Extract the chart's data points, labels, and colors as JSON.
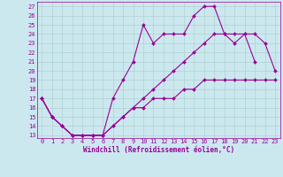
{
  "xlabel": "Windchill (Refroidissement éolien,°C)",
  "x_hours": [
    0,
    1,
    2,
    3,
    4,
    5,
    6,
    7,
    8,
    9,
    10,
    11,
    12,
    13,
    14,
    15,
    16,
    17,
    18,
    19,
    20,
    21,
    22,
    23
  ],
  "line_jagged": [
    17,
    15,
    14,
    13,
    13,
    13,
    13,
    17,
    19,
    21,
    25,
    23,
    24,
    24,
    24,
    26,
    27,
    27,
    24,
    23,
    24,
    21,
    null,
    null
  ],
  "line_upper": [
    17,
    15,
    14,
    13,
    13,
    13,
    13,
    14,
    15,
    16,
    17,
    18,
    19,
    20,
    21,
    22,
    23,
    24,
    24,
    24,
    24,
    24,
    23,
    20
  ],
  "line_lower": [
    17,
    15,
    14,
    13,
    13,
    13,
    13,
    14,
    15,
    16,
    16,
    17,
    17,
    17,
    18,
    18,
    19,
    19,
    19,
    19,
    19,
    19,
    19,
    19
  ],
  "color": "#990099",
  "bg_color": "#cce8ef",
  "grid_color": "#aacccc",
  "ylim_min": 13,
  "ylim_max": 27,
  "yticks": [
    13,
    14,
    15,
    16,
    17,
    18,
    19,
    20,
    21,
    22,
    23,
    24,
    25,
    26,
    27
  ],
  "marker": "D",
  "markersize": 2.0,
  "linewidth": 0.8,
  "tick_fontsize": 5.0,
  "xlabel_fontsize": 5.5
}
